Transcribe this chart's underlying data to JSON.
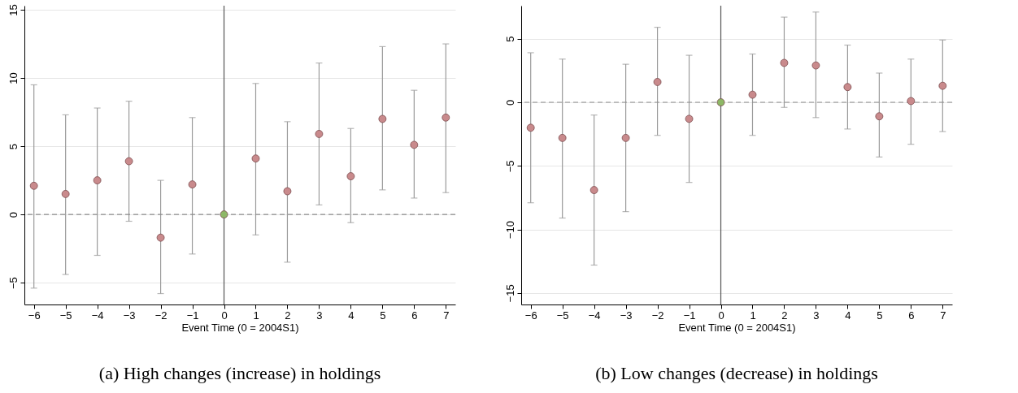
{
  "chart_data": [
    {
      "type": "scatter",
      "title": "(a) High changes (increase) in holdings",
      "xlabel": "Event Time (0 = 2004S1)",
      "x": [
        -6,
        -5,
        -4,
        -3,
        -2,
        -1,
        0,
        1,
        2,
        3,
        4,
        5,
        6,
        7
      ],
      "values": [
        2.1,
        1.5,
        2.5,
        3.9,
        -1.7,
        2.2,
        0,
        4.1,
        1.7,
        5.9,
        2.8,
        7.0,
        5.1,
        7.1
      ],
      "errors": [
        [
          -5.4,
          9.5
        ],
        [
          -4.4,
          7.3
        ],
        [
          -3.0,
          7.8
        ],
        [
          -0.5,
          8.3
        ],
        [
          -5.8,
          2.5
        ],
        [
          -2.9,
          7.1
        ],
        null,
        [
          -1.5,
          9.6
        ],
        [
          -3.5,
          6.8
        ],
        [
          0.7,
          11.1
        ],
        [
          -0.6,
          6.3
        ],
        [
          1.8,
          12.3
        ],
        [
          1.2,
          9.1
        ],
        [
          1.6,
          12.5
        ]
      ],
      "colors": [
        "#c98a8c",
        "#c98a8c",
        "#c98a8c",
        "#c98a8c",
        "#c98a8c",
        "#c98a8c",
        "#8db866",
        "#c98a8c",
        "#c98a8c",
        "#c98a8c",
        "#c98a8c",
        "#c98a8c",
        "#c98a8c",
        "#c98a8c"
      ],
      "marker": "circle",
      "grid": "y",
      "xlim": [
        -6.3,
        7.3
      ],
      "xticks": [
        -6,
        -5,
        -4,
        -3,
        -2,
        -1,
        0,
        1,
        2,
        3,
        4,
        5,
        6,
        7
      ],
      "ylim": [
        -6.6,
        15.3
      ],
      "yticks": [
        -5,
        0,
        5,
        10,
        15
      ],
      "ref_lines": [
        {
          "axis": "y",
          "value": 0,
          "line_style": "dashed",
          "color": "#8c8c8c"
        },
        {
          "axis": "x",
          "value": 0,
          "line_style": "solid",
          "color": "#555555"
        }
      ]
    },
    {
      "type": "scatter",
      "title": "(b) Low changes (decrease) in holdings",
      "xlabel": "Event Time (0 = 2004S1)",
      "x": [
        -6,
        -5,
        -4,
        -3,
        -2,
        -1,
        0,
        1,
        2,
        3,
        4,
        5,
        6,
        7
      ],
      "values": [
        -2.0,
        -2.8,
        -6.9,
        -2.8,
        1.6,
        -1.3,
        0,
        0.6,
        3.1,
        2.9,
        1.2,
        -1.1,
        0.1,
        1.3
      ],
      "errors": [
        [
          -7.9,
          3.9
        ],
        [
          -9.1,
          3.4
        ],
        [
          -12.8,
          -1.0
        ],
        [
          -8.6,
          3.0
        ],
        [
          -2.6,
          5.9
        ],
        [
          -6.3,
          3.7
        ],
        null,
        [
          -2.6,
          3.8
        ],
        [
          -0.4,
          6.7
        ],
        [
          -1.2,
          7.1
        ],
        [
          -2.1,
          4.5
        ],
        [
          -4.3,
          2.3
        ],
        [
          -3.3,
          3.4
        ],
        [
          -2.3,
          4.9
        ]
      ],
      "colors": [
        "#c98a8c",
        "#c98a8c",
        "#c98a8c",
        "#c98a8c",
        "#c98a8c",
        "#c98a8c",
        "#8db866",
        "#c98a8c",
        "#c98a8c",
        "#c98a8c",
        "#c98a8c",
        "#c98a8c",
        "#c98a8c",
        "#c98a8c"
      ],
      "marker": "circle",
      "grid": "y",
      "xlim": [
        -6.3,
        7.3
      ],
      "xticks": [
        -6,
        -5,
        -4,
        -3,
        -2,
        -1,
        0,
        1,
        2,
        3,
        4,
        5,
        6,
        7
      ],
      "ylim": [
        -15.9,
        7.6
      ],
      "yticks": [
        -15,
        -10,
        -5,
        0,
        5
      ],
      "ref_lines": [
        {
          "axis": "y",
          "value": 0,
          "line_style": "dashed",
          "color": "#8c8c8c"
        },
        {
          "axis": "x",
          "value": 0,
          "line_style": "solid",
          "color": "#555555"
        }
      ]
    }
  ]
}
